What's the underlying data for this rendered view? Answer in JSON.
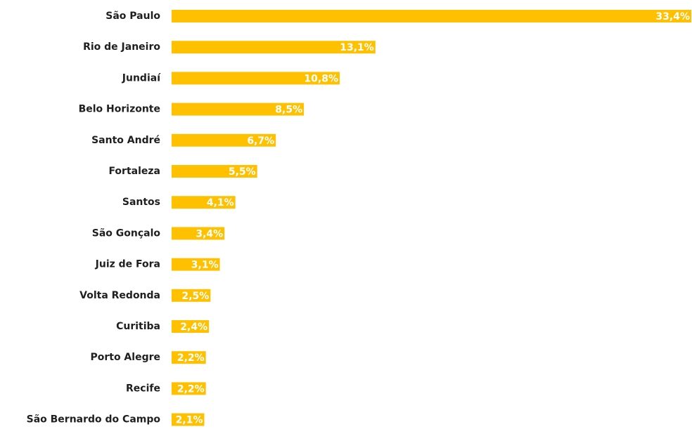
{
  "chart_data": {
    "type": "bar",
    "orientation": "horizontal",
    "categories": [
      "São Paulo",
      "Rio de Janeiro",
      "Jundiaí",
      "Belo Horizonte",
      "Santo André",
      "Fortaleza",
      "Santos",
      "São Gonçalo",
      "Juiz de Fora",
      "Volta Redonda",
      "Curitiba",
      "Porto Alegre",
      "Recife",
      "São Bernardo do Campo"
    ],
    "values": [
      33.4,
      13.1,
      10.8,
      8.5,
      6.7,
      5.5,
      4.1,
      3.4,
      3.1,
      2.5,
      2.4,
      2.2,
      2.2,
      2.1
    ],
    "value_labels": [
      "33,4%",
      "13,1%",
      "10,8%",
      "8,5%",
      "6,7%",
      "5,5%",
      "4,1%",
      "3,4%",
      "3,1%",
      "2,5%",
      "2,4%",
      "2,2%",
      "2,2%",
      "2,1%"
    ],
    "bar_color": "#FFC000",
    "title": "",
    "xlabel": "",
    "ylabel": "",
    "grid": false
  }
}
